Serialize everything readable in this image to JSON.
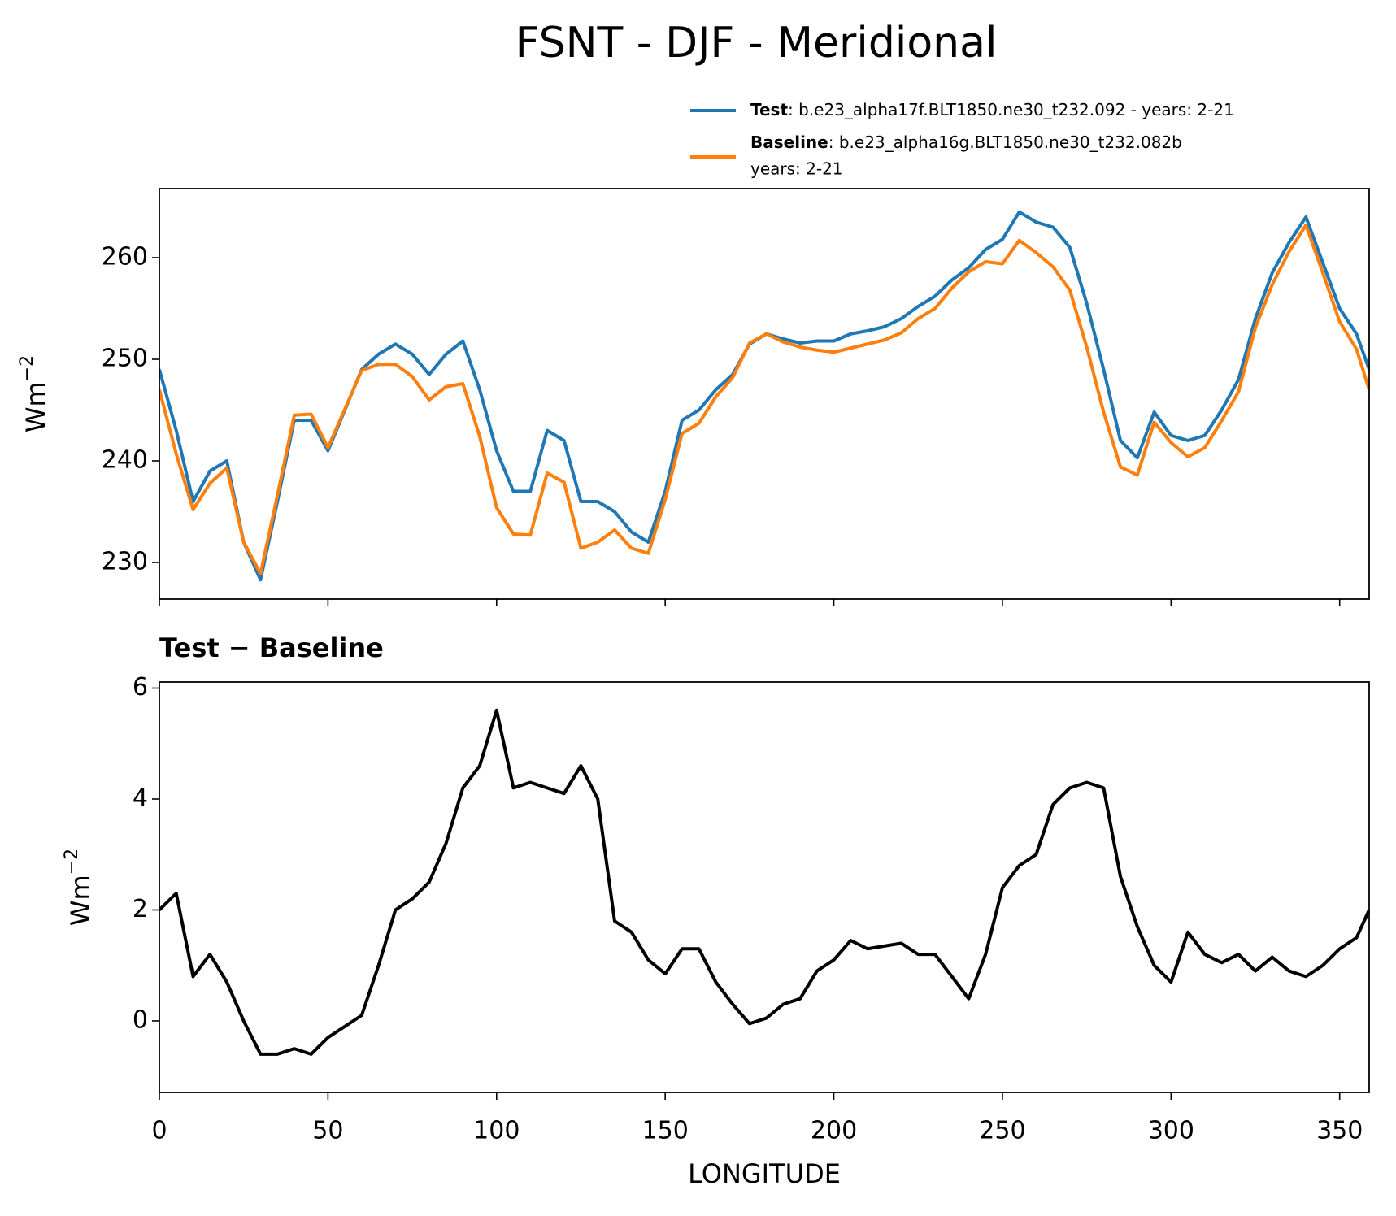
{
  "chart_data": [
    {
      "type": "line",
      "title": "FSNT - DJF - Meridional",
      "y_label": "Wm",
      "y_label_exponent": "−2",
      "x": [
        0,
        5,
        10,
        15,
        20,
        25,
        30,
        35,
        40,
        45,
        50,
        55,
        60,
        65,
        70,
        75,
        80,
        85,
        90,
        95,
        100,
        105,
        110,
        115,
        120,
        125,
        130,
        135,
        140,
        145,
        150,
        155,
        160,
        165,
        170,
        175,
        180,
        185,
        190,
        195,
        200,
        205,
        210,
        215,
        220,
        225,
        230,
        235,
        240,
        245,
        250,
        255,
        260,
        265,
        270,
        275,
        280,
        285,
        290,
        295,
        300,
        305,
        310,
        315,
        320,
        325,
        330,
        335,
        340,
        345,
        350,
        355,
        358.75
      ],
      "series": [
        {
          "name": "Test",
          "description": ": b.e23_alpha17f.BLT1850.ne30_t232.092 - years: 2-21",
          "color": "#1f77b4",
          "values": [
            249,
            243,
            236,
            239,
            240,
            232,
            228.3,
            236,
            244,
            244,
            241,
            245,
            249,
            250.5,
            251.5,
            250.5,
            248.5,
            250.5,
            251.8,
            247,
            241,
            237,
            237,
            243,
            242,
            236,
            236,
            235,
            233,
            232,
            237,
            244,
            245,
            247,
            248.5,
            251.5,
            252.5,
            252,
            251.6,
            251.8,
            251.8,
            252.5,
            252.8,
            253.2,
            254,
            255.2,
            256.2,
            257.8,
            259,
            260.8,
            261.8,
            264.5,
            263.5,
            263,
            261,
            255.5,
            249,
            242,
            240.3,
            244.8,
            242.5,
            242,
            242.5,
            245,
            248,
            254,
            258.5,
            261.5,
            264,
            259.5,
            255,
            252.5,
            249
          ]
        },
        {
          "name": "Baseline",
          "description": ": b.e23_alpha16g.BLT1850.ne30_t232.082b",
          "description_line2": "years: 2-21",
          "color": "#ff7f0e",
          "values": [
            247,
            240.7,
            235.2,
            237.8,
            239.3,
            232,
            228.9,
            236.6,
            244.5,
            244.6,
            241.3,
            245.1,
            248.9,
            249.5,
            249.5,
            248.3,
            246,
            247.3,
            247.6,
            242.4,
            235.4,
            232.8,
            232.7,
            238.8,
            237.9,
            231.4,
            232,
            233.2,
            231.4,
            230.9,
            236.2,
            242.7,
            243.7,
            246.3,
            248.2,
            251.6,
            252.5,
            251.7,
            251.2,
            250.9,
            250.7,
            251.1,
            251.5,
            251.9,
            252.6,
            254,
            255,
            257,
            258.6,
            259.6,
            259.4,
            261.7,
            260.5,
            259.1,
            256.8,
            251.2,
            244.8,
            239.4,
            238.6,
            243.8,
            241.8,
            240.4,
            241.3,
            243.95,
            246.8,
            253.1,
            257.35,
            260.6,
            263.2,
            258.5,
            253.7,
            251,
            247
          ]
        }
      ],
      "xlim": [
        0,
        358.75
      ],
      "ylim": [
        226.4,
        266.8
      ],
      "xticks": [
        0,
        50,
        100,
        150,
        200,
        250,
        300,
        350
      ],
      "show_xtick_labels": false,
      "yticks": [
        230,
        240,
        250,
        260
      ],
      "legend": "upper right"
    },
    {
      "type": "line",
      "title": "Test − Baseline",
      "y_label": "Wm",
      "y_label_exponent": "−2",
      "x_label": "LONGITUDE",
      "x": [
        0,
        5,
        10,
        15,
        20,
        25,
        30,
        35,
        40,
        45,
        50,
        55,
        60,
        65,
        70,
        75,
        80,
        85,
        90,
        95,
        100,
        105,
        110,
        115,
        120,
        125,
        130,
        135,
        140,
        145,
        150,
        155,
        160,
        165,
        170,
        175,
        180,
        185,
        190,
        195,
        200,
        205,
        210,
        215,
        220,
        225,
        230,
        235,
        240,
        245,
        250,
        255,
        260,
        265,
        270,
        275,
        280,
        285,
        290,
        295,
        300,
        305,
        310,
        315,
        320,
        325,
        330,
        335,
        340,
        345,
        350,
        355,
        358.75
      ],
      "series": [
        {
          "color": "#000000",
          "values": [
            2,
            2.3,
            0.8,
            1.2,
            0.7,
            0,
            -0.6,
            -0.6,
            -0.5,
            -0.6,
            -0.3,
            -0.1,
            0.1,
            1.0,
            2.0,
            2.2,
            2.5,
            3.2,
            4.2,
            4.6,
            5.6,
            4.2,
            4.3,
            4.2,
            4.1,
            4.6,
            4.0,
            1.8,
            1.6,
            1.1,
            0.85,
            1.3,
            1.3,
            0.7,
            0.3,
            -0.05,
            0.05,
            0.3,
            0.4,
            0.9,
            1.1,
            1.45,
            1.3,
            1.35,
            1.4,
            1.2,
            1.2,
            0.8,
            0.4,
            1.2,
            2.4,
            2.8,
            3.0,
            3.9,
            4.2,
            4.3,
            4.2,
            2.6,
            1.7,
            1.0,
            0.7,
            1.6,
            1.2,
            1.05,
            1.2,
            0.9,
            1.15,
            0.9,
            0.8,
            1.0,
            1.3,
            1.5,
            2.0
          ]
        }
      ],
      "xlim": [
        0,
        358.75
      ],
      "ylim": [
        -1.29,
        6.11
      ],
      "xticks": [
        0,
        50,
        100,
        150,
        200,
        250,
        300,
        350
      ],
      "show_xtick_labels": true,
      "yticks": [
        0,
        2,
        4,
        6
      ]
    }
  ]
}
